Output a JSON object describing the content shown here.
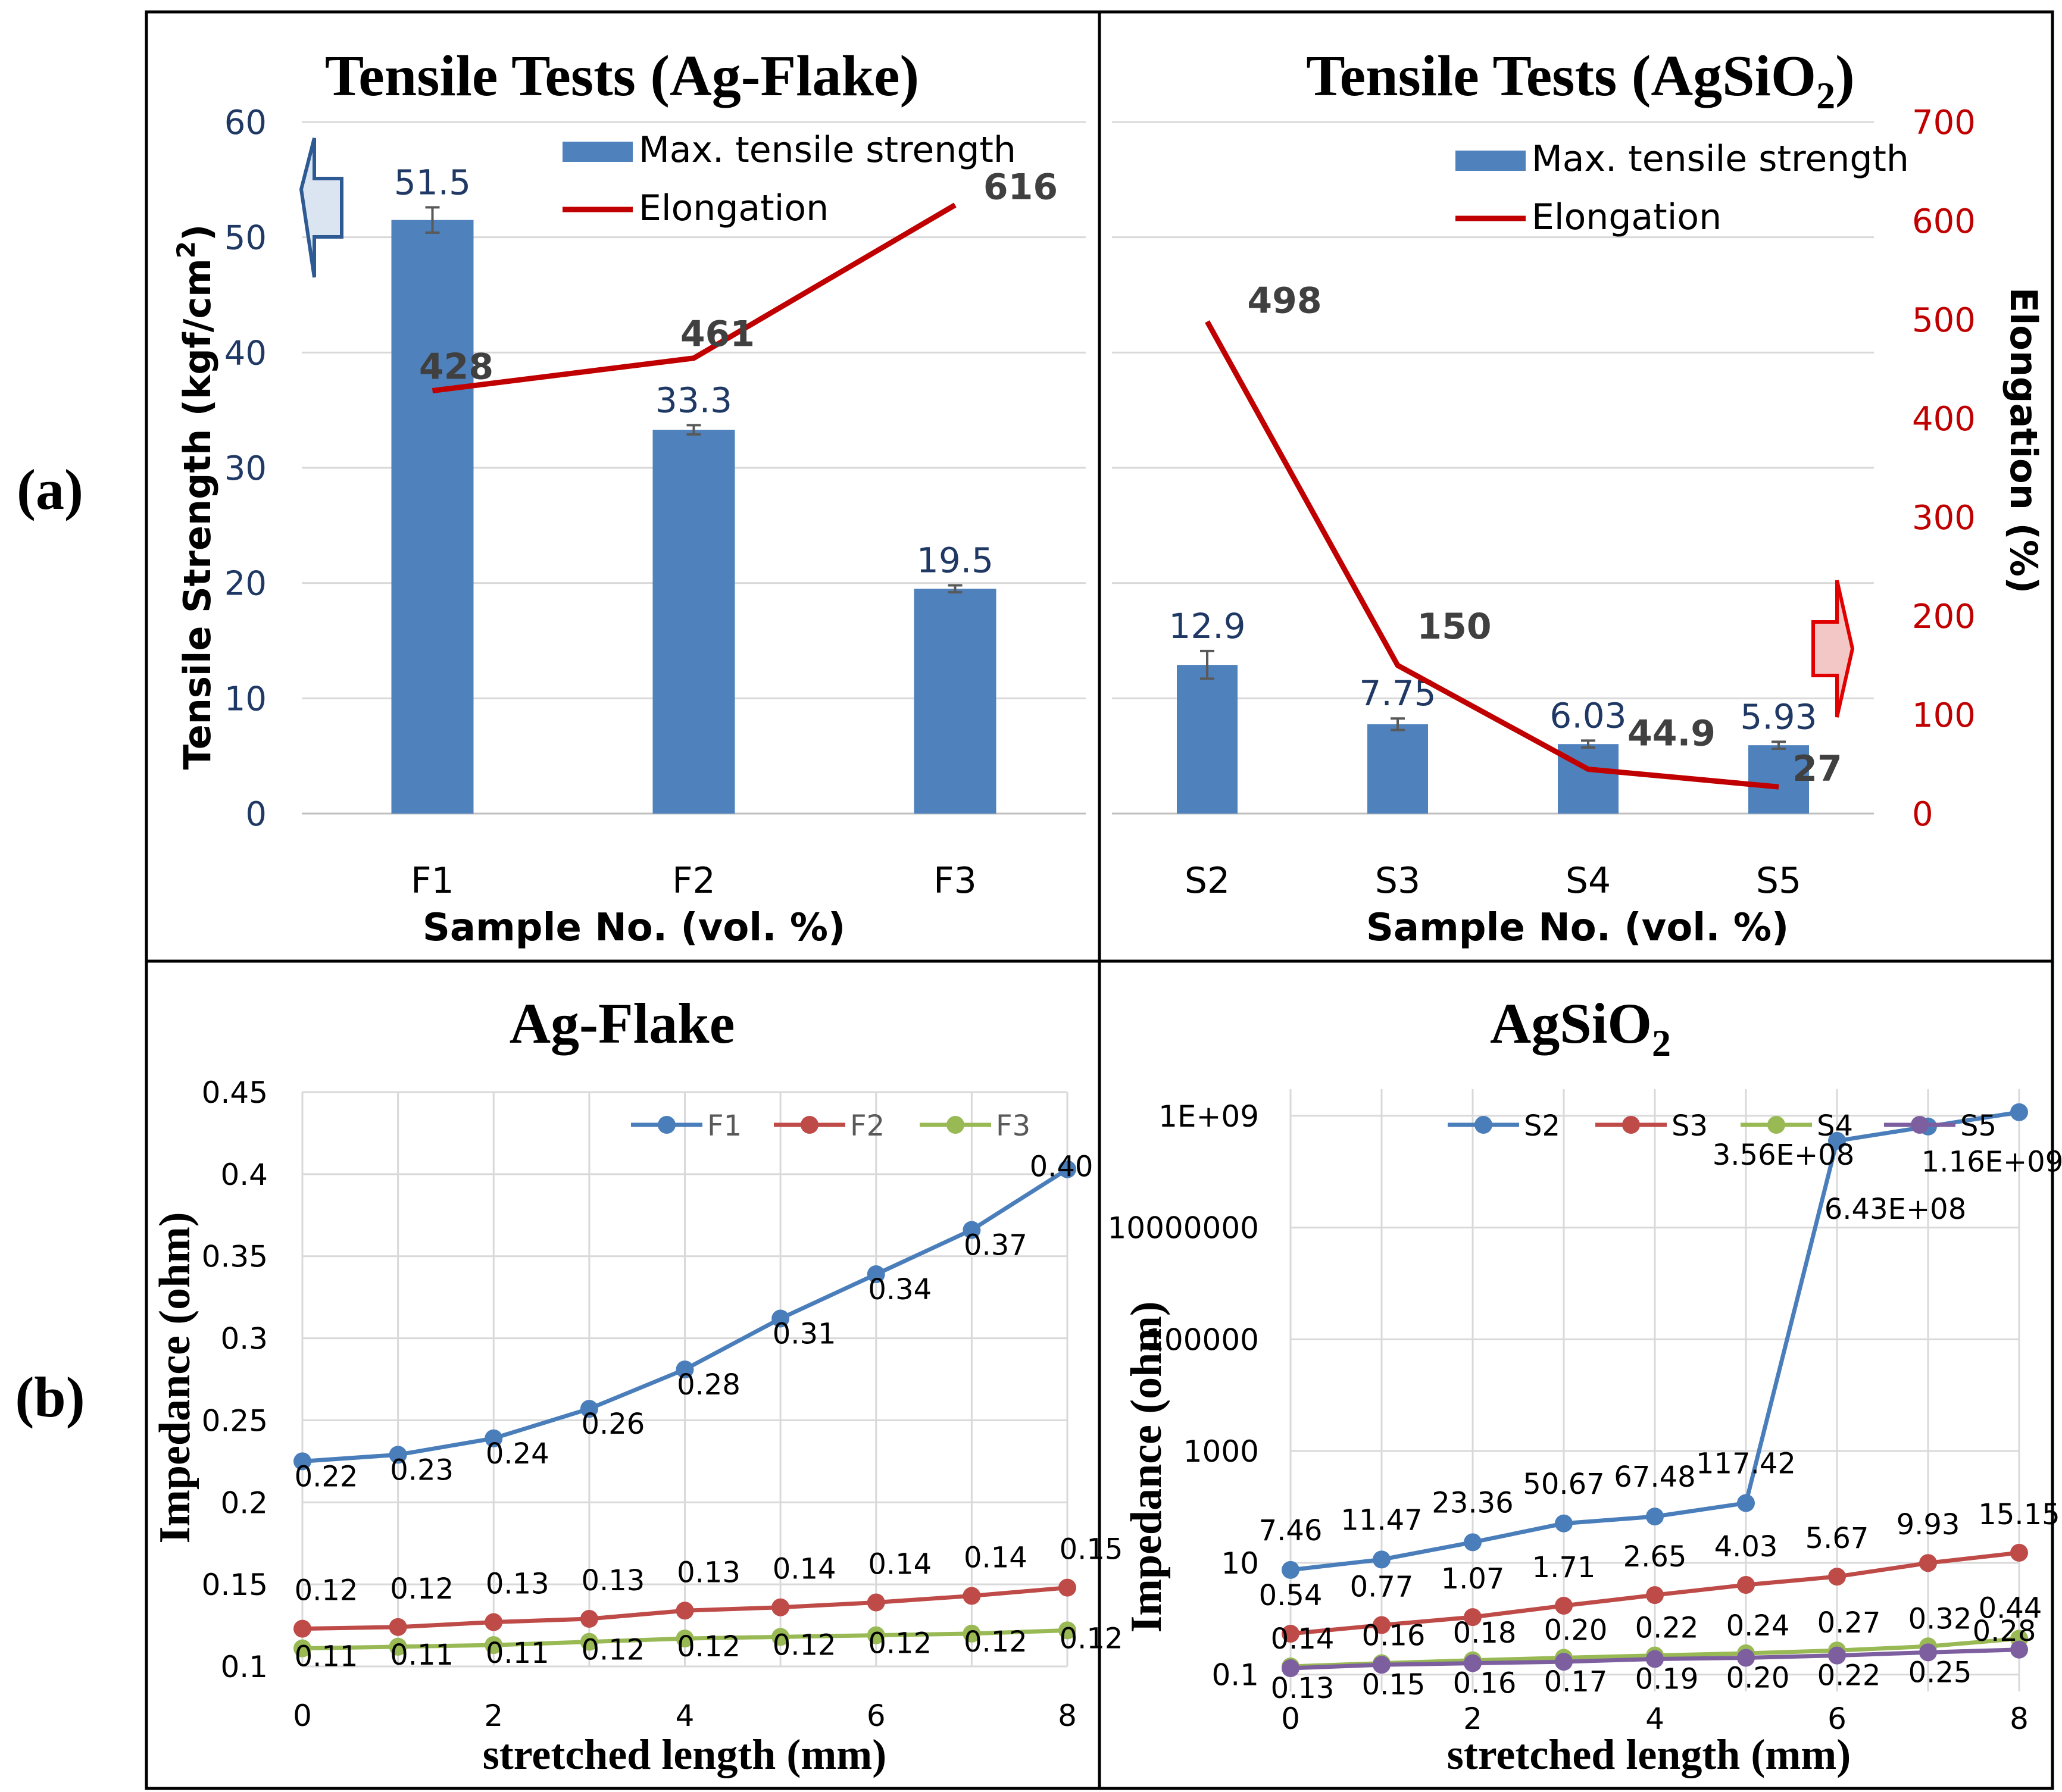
{
  "figure_labels": {
    "a": "(a)",
    "b": "(b)"
  },
  "colors": {
    "bar": "#4f81bd",
    "elongation": "#c00000",
    "navy_label": "#1f3864",
    "grid": "#d9d9d9",
    "s2": "#4a7ebb",
    "s3": "#be4b48",
    "s4": "#98b954",
    "s5": "#7d5fa0"
  },
  "chart_data": [
    {
      "id": "tensile-ag-flake",
      "type": "bar",
      "title": "Tensile Tests (Ag-Flake)",
      "xlabel": "Sample No. (vol. %)",
      "ylabel": "Tensile Strength (kgf/cm",
      "ylabel_sup": "2",
      "ylabel_close": ")",
      "ylim": [
        0,
        60
      ],
      "y_ticks": [
        "0",
        "10",
        "20",
        "30",
        "40",
        "50",
        "60"
      ],
      "y2lim": [
        0,
        700
      ],
      "categories": [
        "F1",
        "F2",
        "F3"
      ],
      "series": [
        {
          "name": "Max. tensile strength",
          "type": "bar",
          "axis": "left",
          "values": [
            51.5,
            33.3,
            19.5
          ],
          "labels": [
            "51.5",
            "33.3",
            "19.5"
          ],
          "errors": [
            1.1,
            0.4,
            0.3
          ]
        },
        {
          "name": "Elongation",
          "type": "line",
          "axis": "right",
          "values": [
            428,
            461,
            616
          ],
          "labels": [
            "428",
            "461",
            "616"
          ]
        }
      ],
      "legend": [
        "Max. tensile strength",
        "Elongation"
      ]
    },
    {
      "id": "tensile-agsio2",
      "type": "bar",
      "title": "Tensile Tests (AgSiO",
      "title_sub": "2",
      "title_close": ")",
      "xlabel": "Sample No. (vol. %)",
      "ylabel": "Elongation (%)",
      "ylim": [
        0,
        60
      ],
      "y2lim": [
        0,
        700
      ],
      "y2_ticks": [
        "0",
        "100",
        "200",
        "300",
        "400",
        "500",
        "600",
        "700"
      ],
      "categories": [
        "S2",
        "S3",
        "S4",
        "S5"
      ],
      "series": [
        {
          "name": "Max. tensile strength",
          "type": "bar",
          "axis": "left",
          "values": [
            12.9,
            7.75,
            6.03,
            5.93
          ],
          "labels": [
            "12.9",
            "7.75",
            "6.03",
            "5.93"
          ],
          "errors": [
            1.2,
            0.5,
            0.3,
            0.3
          ]
        },
        {
          "name": "Elongation",
          "type": "line",
          "axis": "right",
          "values": [
            498,
            150,
            44.9,
            27
          ],
          "labels": [
            "498",
            "150",
            "44.9",
            "27"
          ]
        }
      ],
      "legend": [
        "Max. tensile strength",
        "Elongation"
      ]
    },
    {
      "id": "impedance-ag-flake",
      "type": "line",
      "title": "Ag-Flake",
      "xlabel": "stretched length (mm)",
      "ylabel": "Impedance (ohm)",
      "xlim": [
        0,
        8
      ],
      "ylim": [
        0.1,
        0.45
      ],
      "x_ticks": [
        "0",
        "2",
        "4",
        "6",
        "8"
      ],
      "y_ticks": [
        "0.1",
        "0.15",
        "0.2",
        "0.25",
        "0.3",
        "0.35",
        "0.4",
        "0.45"
      ],
      "x": [
        0,
        1,
        2,
        3,
        4,
        5,
        6,
        7,
        8
      ],
      "series": [
        {
          "name": "F1",
          "values": [
            0.225,
            0.229,
            0.239,
            0.257,
            0.281,
            0.312,
            0.339,
            0.366,
            0.403
          ],
          "labels": [
            "0.22",
            "0.23",
            "0.24",
            "0.26",
            "0.28",
            "0.31",
            "0.34",
            "0.37",
            "0.40"
          ]
        },
        {
          "name": "F2",
          "values": [
            0.123,
            0.124,
            0.127,
            0.129,
            0.134,
            0.136,
            0.139,
            0.143,
            0.148
          ],
          "labels": [
            "0.12",
            "0.12",
            "0.13",
            "0.13",
            "0.13",
            "0.14",
            "0.14",
            "0.14",
            "0.15"
          ]
        },
        {
          "name": "F3",
          "values": [
            0.111,
            0.112,
            0.113,
            0.115,
            0.117,
            0.118,
            0.119,
            0.12,
            0.122
          ],
          "labels": [
            "0.11",
            "0.11",
            "0.11",
            "0.12",
            "0.12",
            "0.12",
            "0.12",
            "0.12",
            "0.12"
          ]
        }
      ],
      "legend": [
        "F1",
        "F2",
        "F3"
      ]
    },
    {
      "id": "impedance-agsio2",
      "type": "line",
      "scale": "log",
      "title": "AgSiO",
      "title_sub": "2",
      "xlabel": "stretched length (mm)",
      "ylabel": "Impedance (ohm)",
      "xlim": [
        0,
        8
      ],
      "ylim": [
        0.05,
        3000000000
      ],
      "x_ticks": [
        "0",
        "2",
        "4",
        "6",
        "8"
      ],
      "y_ticks": [
        {
          "value": 0.1,
          "label": "0.1"
        },
        {
          "value": 10,
          "label": "10"
        },
        {
          "value": 1000,
          "label": "1000"
        },
        {
          "value": 100000,
          "label": "100000"
        },
        {
          "value": 10000000,
          "label": "10000000"
        },
        {
          "value": 1000000000,
          "label": "1E+09"
        }
      ],
      "x": [
        0,
        1,
        2,
        3,
        4,
        5,
        6,
        7,
        8
      ],
      "series": [
        {
          "name": "S2",
          "values": [
            7.46,
            11.47,
            23.36,
            50.67,
            67.48,
            117.42,
            356000000,
            643000000,
            1160000000
          ],
          "labels": [
            "7.46",
            "11.47",
            "23.36",
            "50.67",
            "67.48",
            "117.42",
            "3.56E+08",
            "6.43E+08",
            "1.16E+09"
          ]
        },
        {
          "name": "S3",
          "values": [
            0.54,
            0.77,
            1.07,
            1.71,
            2.65,
            4.03,
            5.67,
            9.93,
            15.15
          ],
          "labels": [
            "0.54",
            "0.77",
            "1.07",
            "1.71",
            "2.65",
            "4.03",
            "5.67",
            "9.93",
            "15.15"
          ]
        },
        {
          "name": "S4",
          "values": [
            0.14,
            0.16,
            0.18,
            0.2,
            0.22,
            0.24,
            0.27,
            0.32,
            0.44
          ],
          "labels": [
            "0.14",
            "0.16",
            "0.18",
            "0.20",
            "0.22",
            "0.24",
            "0.27",
            "0.32",
            "0.44"
          ]
        },
        {
          "name": "S5",
          "values": [
            0.13,
            0.15,
            0.16,
            0.17,
            0.19,
            0.2,
            0.22,
            0.25,
            0.28
          ],
          "labels": [
            "0.13",
            "0.15",
            "0.16",
            "0.17",
            "0.19",
            "0.20",
            "0.22",
            "0.25",
            "0.28"
          ]
        }
      ],
      "legend": [
        "S2",
        "S3",
        "S4",
        "S5"
      ]
    }
  ]
}
